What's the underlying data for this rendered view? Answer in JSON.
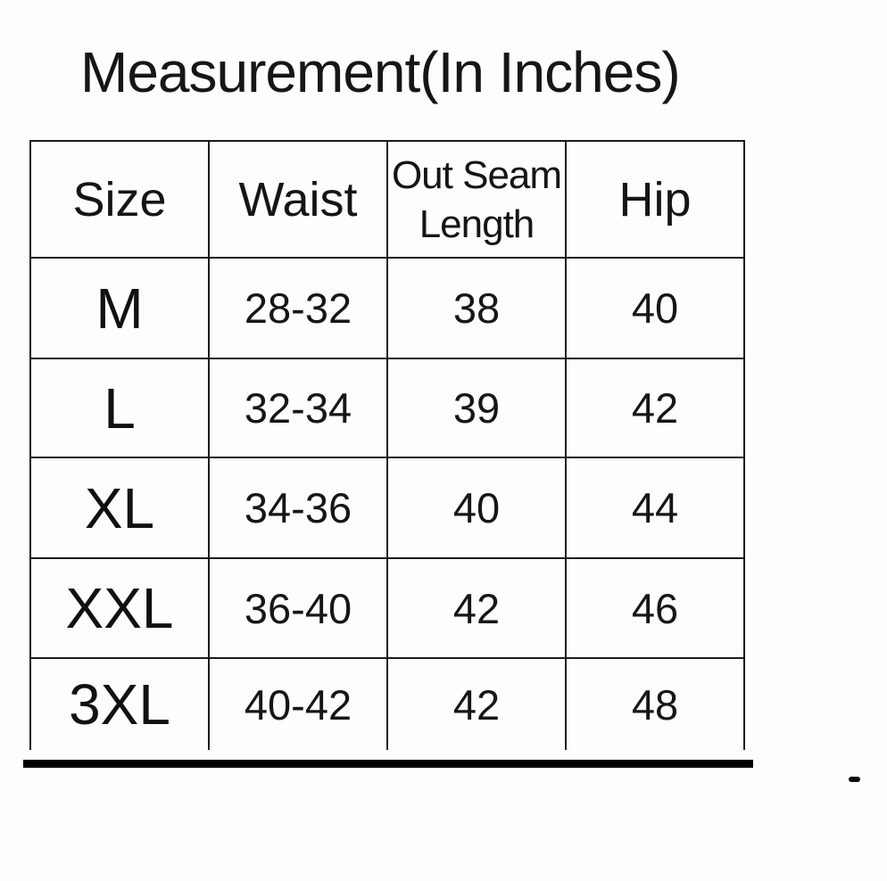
{
  "title": "Measurement(In Inches)",
  "chart_data": {
    "type": "table",
    "title": "Measurement(In Inches)",
    "columns": [
      "Size",
      "Waist",
      "Out Seam Length",
      "Hip"
    ],
    "rows": [
      [
        "M",
        "28-32",
        "38",
        "40"
      ],
      [
        "L",
        "32-34",
        "39",
        "42"
      ],
      [
        "XL",
        "34-36",
        "40",
        "44"
      ],
      [
        "XXL",
        "36-40",
        "42",
        "46"
      ],
      [
        "3XL",
        "40-42",
        "42",
        "48"
      ]
    ],
    "units": "inches",
    "layout_hints": {
      "equal_column_widths": true,
      "thick_bottom_rule": true,
      "grid": "all-borders"
    }
  },
  "colors": {
    "background": "#fdfdfd",
    "text": "#161616",
    "border": "#1c1c1c",
    "thick_rule": "#000000"
  }
}
